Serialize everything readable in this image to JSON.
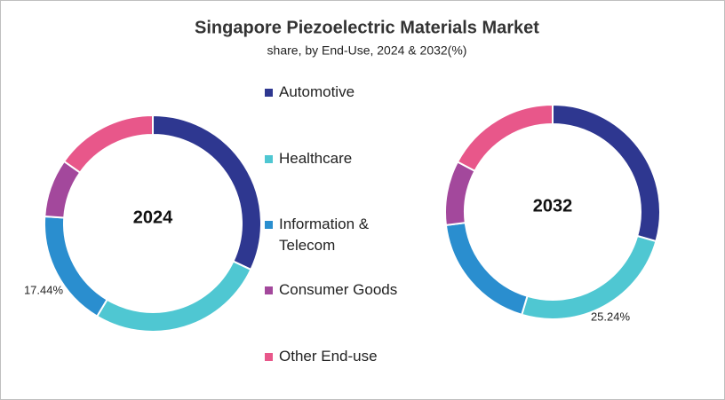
{
  "title": "Singapore Piezoelectric Materials Market",
  "subtitle": "share, by End-Use, 2024 & 2032(%)",
  "categories": [
    "Automotive",
    "Healthcare",
    "Information & Telecom",
    "Consumer Goods",
    "Other End-use"
  ],
  "colors": [
    "#2e3790",
    "#4fc7d2",
    "#2a8ecf",
    "#a3489c",
    "#e8578a"
  ],
  "chart_data": [
    {
      "type": "donut",
      "label": "2024",
      "values": [
        32,
        26.6,
        17.44,
        8.7,
        15.26
      ],
      "value_labels": [
        null,
        null,
        "17.44%",
        null,
        null
      ]
    },
    {
      "type": "donut",
      "label": "2032",
      "values": [
        29.4,
        25.24,
        18.4,
        9.7,
        17.26
      ],
      "value_labels": [
        null,
        "25.24%",
        null,
        null,
        null
      ]
    }
  ]
}
